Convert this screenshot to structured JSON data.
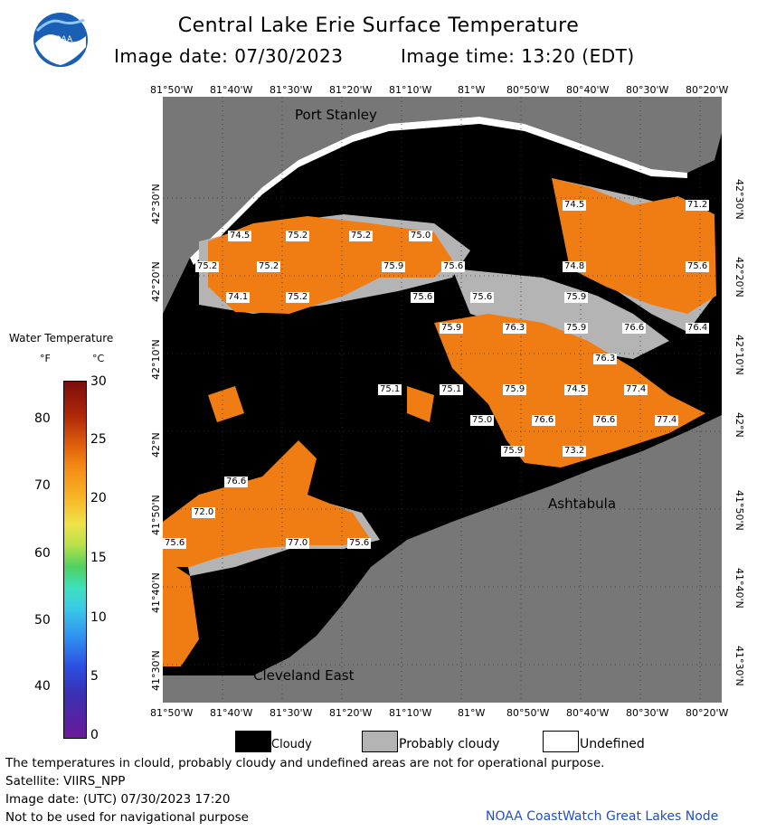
{
  "title": "Central Lake Erie Surface Temperature",
  "image_date_label": "Image date: 07/30/2023",
  "image_time_label": "Image time: 13:20 (EDT)",
  "logo_text": "NOAA",
  "lon_ticks": [
    "81°50'W",
    "81°40'W",
    "81°30'W",
    "81°20'W",
    "81°10'W",
    "81°W",
    "80°50'W",
    "80°40'W",
    "80°30'W",
    "80°20'W"
  ],
  "lat_ticks_left": [
    "42°30'N",
    "42°20'N",
    "42°10'N",
    "42°N",
    "41°50'N",
    "41°40'N",
    "41°30'N"
  ],
  "lat_ticks_right": [
    "42°30'N",
    "42°20'N",
    "42°10'N",
    "42°N",
    "41°50'N",
    "41°40'N",
    "41°30'N"
  ],
  "place_names": [
    "Port Stanley",
    "Ashtabula",
    "Cleveland East"
  ],
  "temperature_labels": [
    "74.5",
    "75.2",
    "75.2",
    "75.0",
    "75.2",
    "75.2",
    "75.9",
    "75.6",
    "74.1",
    "75.2",
    "75.6",
    "75.6",
    "75.9",
    "75.9",
    "76.3",
    "75.9",
    "76.6",
    "76.3",
    "74.5",
    "77.4",
    "75.1",
    "75.1",
    "75.9",
    "75.0",
    "76.6",
    "76.6",
    "77.4",
    "75.9",
    "73.2",
    "71.2",
    "75.6",
    "74.8",
    "74.5",
    "76.6",
    "72.0",
    "77.0",
    "75.6",
    "75.6",
    "76.4"
  ],
  "legend": {
    "title": "Water Temperature",
    "unit_f": "°F",
    "unit_c": "°C",
    "f_ticks": [
      "80",
      "70",
      "60",
      "50",
      "40"
    ],
    "c_ticks": [
      "30",
      "25",
      "20",
      "15",
      "10",
      "5",
      "0"
    ]
  },
  "key": {
    "cloudy": "Cloudy",
    "probably_cloudy": "Probably cloudy",
    "undefined": "Undefined",
    "cloudy_color": "#000000",
    "probably_cloudy_color": "#b4b4b4",
    "undefined_color": "#ffffff"
  },
  "footer": {
    "disclaimer": "The temperatures in clould, probably cloudy and undefined areas are not for operational purpose.",
    "satellite": "Satellite: VIIRS_NPP",
    "utc_date": "Image date: (UTC) 07/30/2023  17:20",
    "navigation": "Not to be used for navigational purpose",
    "credit": "NOAA CoastWatch Great Lakes Node"
  },
  "colors": {
    "land": "#777777",
    "cloud": "#000000",
    "warm_water": "#f07d14"
  }
}
